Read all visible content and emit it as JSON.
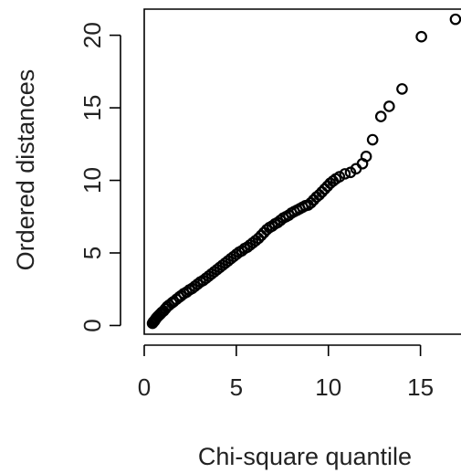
{
  "chart_data": {
    "type": "scatter",
    "title": "",
    "xlabel": "Chi-square quantile",
    "ylabel": "Ordered distances",
    "xlim": [
      0,
      17.2
    ],
    "ylim": [
      -0.6,
      21.8
    ],
    "x_ticks": [
      0,
      5,
      10,
      15
    ],
    "y_ticks": [
      0,
      5,
      10,
      15,
      20
    ],
    "x_tick_labels": [
      "0",
      "5",
      "10",
      "15"
    ],
    "y_tick_labels": [
      "0",
      "5",
      "10",
      "15",
      "20"
    ],
    "grid": false,
    "marker": "open-circle",
    "colors": {
      "points": "#000000",
      "axes": "#000000",
      "background": "#ffffff"
    },
    "points": [
      [
        0.45,
        0.15
      ],
      [
        0.5,
        0.25
      ],
      [
        0.55,
        0.3
      ],
      [
        0.6,
        0.4
      ],
      [
        0.65,
        0.5
      ],
      [
        0.72,
        0.6
      ],
      [
        0.8,
        0.7
      ],
      [
        0.88,
        0.8
      ],
      [
        0.95,
        0.9
      ],
      [
        1.05,
        1.0
      ],
      [
        1.15,
        1.15
      ],
      [
        1.25,
        1.3
      ],
      [
        1.35,
        1.4
      ],
      [
        1.5,
        1.55
      ],
      [
        1.6,
        1.65
      ],
      [
        1.75,
        1.8
      ],
      [
        1.9,
        1.95
      ],
      [
        2.0,
        2.05
      ],
      [
        2.15,
        2.2
      ],
      [
        2.3,
        2.3
      ],
      [
        2.45,
        2.45
      ],
      [
        2.6,
        2.55
      ],
      [
        2.75,
        2.7
      ],
      [
        2.9,
        2.85
      ],
      [
        3.05,
        3.0
      ],
      [
        3.2,
        3.1
      ],
      [
        3.35,
        3.25
      ],
      [
        3.5,
        3.4
      ],
      [
        3.65,
        3.55
      ],
      [
        3.8,
        3.7
      ],
      [
        3.95,
        3.85
      ],
      [
        4.1,
        4.0
      ],
      [
        4.25,
        4.15
      ],
      [
        4.4,
        4.3
      ],
      [
        4.55,
        4.45
      ],
      [
        4.7,
        4.6
      ],
      [
        4.85,
        4.75
      ],
      [
        5.0,
        4.9
      ],
      [
        5.15,
        5.05
      ],
      [
        5.3,
        5.15
      ],
      [
        5.45,
        5.3
      ],
      [
        5.6,
        5.4
      ],
      [
        5.75,
        5.55
      ],
      [
        5.9,
        5.7
      ],
      [
        6.05,
        5.85
      ],
      [
        6.2,
        6.0
      ],
      [
        6.35,
        6.2
      ],
      [
        6.5,
        6.4
      ],
      [
        6.65,
        6.6
      ],
      [
        6.8,
        6.75
      ],
      [
        6.95,
        6.85
      ],
      [
        7.1,
        7.0
      ],
      [
        7.25,
        7.1
      ],
      [
        7.4,
        7.25
      ],
      [
        7.55,
        7.4
      ],
      [
        7.7,
        7.5
      ],
      [
        7.85,
        7.6
      ],
      [
        8.0,
        7.75
      ],
      [
        8.15,
        7.85
      ],
      [
        8.3,
        7.95
      ],
      [
        8.45,
        8.05
      ],
      [
        8.6,
        8.15
      ],
      [
        8.75,
        8.25
      ],
      [
        8.9,
        8.3
      ],
      [
        9.05,
        8.45
      ],
      [
        9.2,
        8.65
      ],
      [
        9.35,
        8.85
      ],
      [
        9.5,
        9.0
      ],
      [
        9.65,
        9.2
      ],
      [
        9.8,
        9.4
      ],
      [
        9.95,
        9.6
      ],
      [
        10.1,
        9.8
      ],
      [
        10.25,
        9.95
      ],
      [
        10.4,
        10.1
      ],
      [
        10.6,
        10.25
      ],
      [
        10.9,
        10.45
      ],
      [
        11.2,
        10.55
      ],
      [
        11.5,
        10.8
      ],
      [
        11.85,
        11.15
      ],
      [
        12.05,
        11.65
      ],
      [
        12.4,
        12.8
      ],
      [
        12.85,
        14.4
      ],
      [
        13.3,
        15.1
      ],
      [
        14.0,
        16.3
      ],
      [
        15.05,
        19.9
      ],
      [
        16.9,
        21.1
      ]
    ]
  }
}
